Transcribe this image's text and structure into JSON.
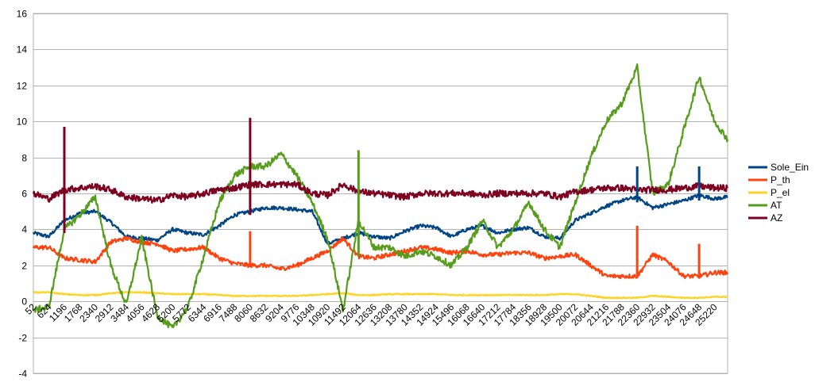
{
  "chart_data": {
    "type": "line",
    "title": "",
    "xlabel": "",
    "ylabel": "",
    "ylim": [
      -4,
      16
    ],
    "yticks": [
      -4,
      -2,
      0,
      2,
      4,
      6,
      8,
      10,
      12,
      14,
      16
    ],
    "xticks": [
      52,
      624,
      1196,
      1768,
      2340,
      2912,
      3484,
      4056,
      4628,
      5200,
      5772,
      6344,
      6916,
      7488,
      8060,
      8632,
      9204,
      9776,
      10348,
      10920,
      11492,
      12064,
      12636,
      13208,
      13780,
      14352,
      14924,
      15496,
      16068,
      16640,
      17212,
      17784,
      18356,
      18928,
      19500,
      20072,
      20644,
      21216,
      21788,
      22360,
      22932,
      23504,
      24076,
      24648,
      25220
    ],
    "xlim": [
      52,
      25700
    ],
    "grid": true,
    "legend_position": "right",
    "x": [
      52,
      624,
      1196,
      1768,
      2340,
      2912,
      3484,
      4056,
      4628,
      5200,
      5772,
      6344,
      6916,
      7488,
      8060,
      8632,
      9204,
      9776,
      10348,
      10920,
      11492,
      12064,
      12636,
      13208,
      13780,
      14352,
      14924,
      15496,
      16068,
      16640,
      17212,
      17784,
      18356,
      18928,
      19500,
      20072,
      20644,
      21216,
      21788,
      22360,
      22932,
      23504,
      24076,
      24648,
      25220,
      25700
    ],
    "series": [
      {
        "name": "Sole_Ein",
        "color": "#004586",
        "values": [
          3.8,
          3.6,
          4.5,
          4.9,
          5.0,
          4.4,
          3.6,
          3.5,
          3.4,
          4.0,
          3.8,
          3.7,
          4.2,
          4.8,
          5.0,
          5.2,
          5.2,
          5.1,
          5.0,
          3.2,
          3.5,
          3.8,
          3.6,
          3.5,
          3.9,
          4.2,
          4.1,
          3.6,
          4.0,
          4.2,
          3.8,
          4.0,
          4.1,
          3.6,
          3.5,
          4.5,
          4.9,
          5.3,
          5.6,
          5.8,
          5.2,
          5.4,
          5.6,
          5.9,
          5.7,
          5.8
        ]
      },
      {
        "name": "P_th",
        "color": "#FF420E",
        "values": [
          3.0,
          3.0,
          2.4,
          2.3,
          2.2,
          3.3,
          3.5,
          3.3,
          3.2,
          2.8,
          2.9,
          3.0,
          2.4,
          2.1,
          2.0,
          2.0,
          1.8,
          2.0,
          2.4,
          2.8,
          3.5,
          2.5,
          2.4,
          2.6,
          2.8,
          3.0,
          2.9,
          2.7,
          2.8,
          2.6,
          2.6,
          2.7,
          2.7,
          2.4,
          2.5,
          2.6,
          2.0,
          1.4,
          1.4,
          1.4,
          2.6,
          2.2,
          1.4,
          1.4,
          1.6,
          1.6
        ]
      },
      {
        "name": "P_el",
        "color": "#FFD320",
        "values": [
          0.5,
          0.5,
          0.4,
          0.35,
          0.35,
          0.45,
          0.5,
          0.5,
          0.45,
          0.4,
          0.4,
          0.4,
          0.35,
          0.3,
          0.3,
          0.3,
          0.3,
          0.3,
          0.35,
          0.4,
          0.45,
          0.35,
          0.35,
          0.4,
          0.4,
          0.4,
          0.4,
          0.35,
          0.35,
          0.35,
          0.35,
          0.35,
          0.35,
          0.35,
          0.4,
          0.4,
          0.3,
          0.2,
          0.2,
          0.2,
          0.3,
          0.25,
          0.2,
          0.2,
          0.25,
          0.25
        ]
      },
      {
        "name": "AT",
        "color": "#579D1C",
        "values": [
          -0.5,
          -0.3,
          4.0,
          4.8,
          5.8,
          2.0,
          -0.2,
          3.5,
          -0.8,
          -1.5,
          -0.3,
          2.5,
          5.5,
          7.0,
          7.5,
          7.5,
          8.2,
          7.0,
          5.5,
          3.5,
          -0.5,
          4.5,
          3.0,
          3.0,
          2.5,
          2.8,
          2.5,
          2.0,
          3.0,
          4.5,
          3.0,
          4.0,
          5.5,
          4.0,
          3.0,
          5.5,
          8.0,
          10.0,
          11.0,
          13.0,
          6.0,
          6.5,
          9.5,
          12.5,
          10.0,
          9.0
        ]
      },
      {
        "name": "AZ",
        "color": "#7E0021",
        "values": [
          6.0,
          5.7,
          6.2,
          6.3,
          6.4,
          6.2,
          5.8,
          5.7,
          5.6,
          5.9,
          5.8,
          6.0,
          6.2,
          6.3,
          6.5,
          6.5,
          6.5,
          6.5,
          6.0,
          5.9,
          6.5,
          6.1,
          6.0,
          5.9,
          5.8,
          6.0,
          6.0,
          6.0,
          6.0,
          5.9,
          6.0,
          6.0,
          6.0,
          6.0,
          5.8,
          6.1,
          6.2,
          6.3,
          6.3,
          6.2,
          6.2,
          6.2,
          6.3,
          6.4,
          6.3,
          6.3
        ]
      }
    ],
    "spikes": [
      {
        "series": "AZ",
        "x": 1196,
        "top": 9.7,
        "bottom": 3.8
      },
      {
        "series": "AZ",
        "x": 8060,
        "top": 10.2,
        "bottom": 4.8
      },
      {
        "series": "AT",
        "x": 12064,
        "top": 8.4,
        "bottom": 2.5
      },
      {
        "series": "P_th",
        "x": 8060,
        "top": 3.9,
        "bottom": 1.9
      },
      {
        "series": "P_th",
        "x": 22360,
        "top": 4.2,
        "bottom": 1.4
      },
      {
        "series": "P_th",
        "x": 24648,
        "top": 3.2,
        "bottom": 1.5
      },
      {
        "series": "Sole_Ein",
        "x": 22360,
        "top": 7.5,
        "bottom": 5.5
      },
      {
        "series": "Sole_Ein",
        "x": 24648,
        "top": 7.5,
        "bottom": 5.6
      }
    ]
  }
}
